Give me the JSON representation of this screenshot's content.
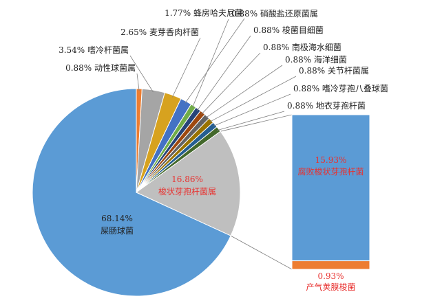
{
  "chart_data": {
    "type": "pie",
    "title": "",
    "slices": [
      {
        "percent": "68.14%",
        "name": "屎肠球菌",
        "value": 68.14,
        "color": "#5b9bd5",
        "label_color": "#222222"
      },
      {
        "percent": "0.88%",
        "name": "动性球菌属",
        "value": 0.88,
        "color": "#ed7d31",
        "label_color": "#222222"
      },
      {
        "percent": "3.54%",
        "name": "嗜冷杆菌属",
        "value": 3.54,
        "color": "#a5a5a5",
        "label_color": "#222222"
      },
      {
        "percent": "2.65%",
        "name": "麦芽香肉杆菌",
        "value": 2.65,
        "color": "#d7a21f",
        "label_color": "#222222"
      },
      {
        "percent": "1.77%",
        "name": "蜂房哈夫尼菌",
        "value": 1.77,
        "color": "#4472c4",
        "label_color": "#222222"
      },
      {
        "percent": "0.88%",
        "name": "硝酸盐还原菌属",
        "value": 0.88,
        "color": "#70ad47",
        "label_color": "#222222"
      },
      {
        "percent": "0.88%",
        "name": "梭菌目细菌",
        "value": 0.88,
        "color": "#264478",
        "label_color": "#222222"
      },
      {
        "percent": "0.88%",
        "name": "南极海水细菌",
        "value": 0.88,
        "color": "#9e480e",
        "label_color": "#222222"
      },
      {
        "percent": "0.88%",
        "name": "海洋细菌",
        "value": 0.88,
        "color": "#636363",
        "label_color": "#222222"
      },
      {
        "percent": "0.88%",
        "name": "关节杆菌属",
        "value": 0.88,
        "color": "#997300",
        "label_color": "#222222"
      },
      {
        "percent": "0.88%",
        "name": "嗜冷芽孢八叠球菌",
        "value": 0.88,
        "color": "#255e91",
        "label_color": "#222222"
      },
      {
        "percent": "0.88%",
        "name": "地衣芽孢杆菌",
        "value": 0.88,
        "color": "#43682b",
        "label_color": "#222222"
      },
      {
        "percent": "16.86%",
        "name": "梭状芽孢杆菌属",
        "value": 16.86,
        "color": "#bfbfbf",
        "label_color": "#e8312f"
      }
    ],
    "breakout": {
      "of": "梭状芽孢杆菌属",
      "segments": [
        {
          "percent": "15.93%",
          "name": "腐败梭状芽孢杆菌",
          "value": 15.93,
          "color": "#5b9bd5",
          "label_color": "#e8312f"
        },
        {
          "percent": "0.93%",
          "name": "产气荚膜梭菌",
          "value": 0.93,
          "color": "#ed7d31",
          "label_color": "#e8312f"
        }
      ]
    }
  }
}
